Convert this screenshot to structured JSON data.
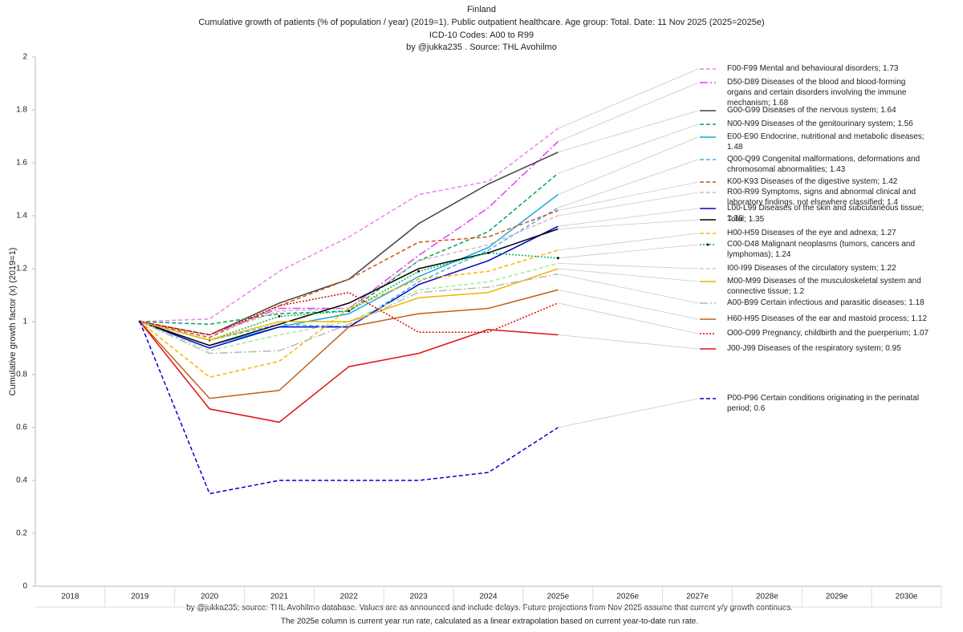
{
  "chart_data": {
    "type": "line",
    "title": "Finland",
    "subtitle": "Cumulative growth of patients (% of population / year) (2019=1).  Public outpatient healthcare. Age group: Total. Date: 11 Nov 2025 (2025=2025e)",
    "subtitle2": "ICD-10 Codes: A00 to R99",
    "subtitle3": "by @jukka235 . Source: THL Avohilmo",
    "y_label": "Cumulative growth factor (x) (2019=1)",
    "footnote": "by @jukka235; source: THL Avohilmo database. Values are as announced and include delays. Future projections from Nov 2025 assume that current y/y growth continues.",
    "footnote2": "The 2025e column is current year run rate, calculated as a linear extrapolation based on current year-to-date run rate.",
    "categories": [
      "2018",
      "2019",
      "2020",
      "2021",
      "2022",
      "2023",
      "2024",
      "2025e",
      "2026e",
      "2027e",
      "2028e",
      "2029e",
      "2030e"
    ],
    "ylim": [
      0,
      2
    ],
    "yticks": [
      0,
      0.2,
      0.4,
      0.6,
      0.8,
      1,
      1.2,
      1.4,
      1.6,
      1.8,
      2
    ],
    "series": [
      {
        "name": "F00-F99 Mental and behavioural disorders; 1.73",
        "color": "#ee82ee",
        "style": "dashed",
        "values": [
          null,
          1,
          1.01,
          1.19,
          1.32,
          1.48,
          1.53,
          1.73,
          null,
          null,
          null,
          null,
          null
        ]
      },
      {
        "name": "D50-D89 Diseases of the blood and blood-forming organs and certain disorders involving the immune mechanism; 1.68",
        "color": "#e040fb",
        "style": "dashdot",
        "values": [
          null,
          1,
          0.95,
          1.05,
          1.05,
          1.25,
          1.43,
          1.68,
          null,
          null,
          null,
          null,
          null
        ]
      },
      {
        "name": "G00-G99 Diseases of the nervous system; 1.64",
        "color": "#404040",
        "style": "solid",
        "values": [
          null,
          1,
          0.95,
          1.07,
          1.16,
          1.37,
          1.52,
          1.64,
          null,
          null,
          null,
          null,
          null
        ]
      },
      {
        "name": "N00-N99 Diseases of the genitourinary system; 1.56",
        "color": "#00a550",
        "style": "dashed",
        "values": [
          null,
          1,
          0.99,
          1.03,
          1.04,
          1.23,
          1.34,
          1.56,
          null,
          null,
          null,
          null,
          null
        ]
      },
      {
        "name": "E00-E90 Endocrine, nutritional and metabolic diseases; 1.48",
        "color": "#1ea7e1",
        "style": "solid",
        "values": [
          null,
          1,
          0.91,
          0.98,
          1.03,
          1.17,
          1.28,
          1.48,
          null,
          null,
          null,
          null,
          null
        ]
      },
      {
        "name": "Q00-Q99 Congenital malformations, deformations and chromosomal abnormalities; 1.43",
        "color": "#3cb4ea",
        "style": "dashed",
        "values": [
          null,
          1,
          0.93,
          0.99,
          0.98,
          1.15,
          1.27,
          1.43,
          null,
          null,
          null,
          null,
          null
        ]
      },
      {
        "name": "K00-K93 Diseases of the digestive system; 1.42",
        "color": "#c8581a",
        "style": "dashed",
        "values": [
          null,
          1,
          0.94,
          1.06,
          1.16,
          1.3,
          1.32,
          1.42,
          null,
          null,
          null,
          null,
          null
        ]
      },
      {
        "name": "R00-R99 Symptoms, signs and abnormal clinical and laboratory findings, not elsewhere classified; 1.4",
        "color": "#d9b3c6",
        "style": "dashed",
        "values": [
          null,
          1,
          0.95,
          1.04,
          1.05,
          1.23,
          1.29,
          1.4,
          null,
          null,
          null,
          null,
          null
        ]
      },
      {
        "name": "L00-L99 Diseases of the skin and subcutaneous tissue; 1.36",
        "color": "#0000cc",
        "style": "solid",
        "values": [
          null,
          1,
          0.9,
          0.98,
          0.98,
          1.14,
          1.23,
          1.36,
          null,
          null,
          null,
          null,
          null
        ]
      },
      {
        "name": "Total; 1.35",
        "color": "#000000",
        "style": "solid",
        "values": [
          null,
          1,
          0.91,
          0.99,
          1.07,
          1.2,
          1.26,
          1.35,
          null,
          null,
          null,
          null,
          null
        ]
      },
      {
        "name": "H00-H59 Diseases of the eye and adnexa; 1.27",
        "color": "#f5b800",
        "style": "dashed",
        "values": [
          null,
          1,
          0.79,
          0.85,
          1.05,
          1.16,
          1.19,
          1.27,
          null,
          null,
          null,
          null,
          null
        ]
      },
      {
        "name": "C00-D48 Malignant neoplasms (tumors, cancers and lymphomas); 1.24",
        "color": "#00b050",
        "style": "dotted",
        "markers": true,
        "values": [
          null,
          1,
          0.93,
          1.02,
          1.04,
          1.19,
          1.26,
          1.24,
          null,
          null,
          null,
          null,
          null
        ]
      },
      {
        "name": "I00-I99 Diseases of the circulatory system; 1.22",
        "color": "#a8e8a0",
        "style": "dashed",
        "values": [
          null,
          1,
          0.89,
          0.95,
          1,
          1.12,
          1.15,
          1.22,
          null,
          null,
          null,
          null,
          null
        ]
      },
      {
        "name": "M00-M99 Diseases of the musculoskeletal system and connective tissue; 1.2",
        "color": "#f0b400",
        "style": "solid",
        "values": [
          null,
          1,
          0.93,
          1,
          1,
          1.09,
          1.11,
          1.2,
          null,
          null,
          null,
          null,
          null
        ]
      },
      {
        "name": "A00-B99 Certain infectious and parasitic diseases; 1.18",
        "color": "#b8b8b8",
        "style": "dashdot",
        "values": [
          null,
          1,
          0.88,
          0.89,
          0.99,
          1.11,
          1.13,
          1.18,
          null,
          null,
          null,
          null,
          null
        ]
      },
      {
        "name": "H60-H95 Diseases of the ear and mastoid process; 1.12",
        "color": "#c0601a",
        "style": "solid",
        "values": [
          null,
          1,
          0.71,
          0.74,
          0.98,
          1.03,
          1.05,
          1.12,
          null,
          null,
          null,
          null,
          null
        ]
      },
      {
        "name": "O00-O99 Pregnancy, childbirth and the puerperium; 1.07",
        "color": "#dd0000",
        "style": "dotted",
        "values": [
          null,
          1,
          0.95,
          1.06,
          1.11,
          0.96,
          0.96,
          1.07,
          null,
          null,
          null,
          null,
          null
        ]
      },
      {
        "name": "J00-J99 Diseases of the respiratory system; 0.95",
        "color": "#e01010",
        "style": "solid",
        "values": [
          null,
          1,
          0.67,
          0.62,
          0.83,
          0.88,
          0.97,
          0.95,
          null,
          null,
          null,
          null,
          null
        ]
      },
      {
        "name": "P00-P96 Certain conditions originating in the perinatal period; 0.6",
        "color": "#0000cc",
        "style": "dashed",
        "values": [
          null,
          1,
          0.35,
          0.4,
          0.4,
          0.4,
          0.43,
          0.6,
          null,
          null,
          null,
          null,
          null
        ]
      }
    ]
  }
}
